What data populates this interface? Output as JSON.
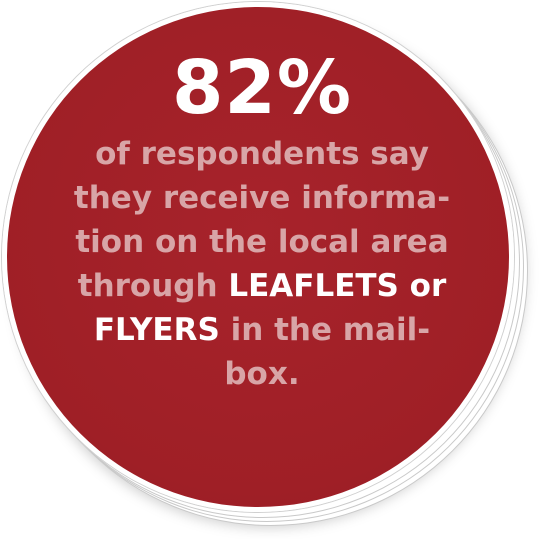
{
  "stat": {
    "value": "82%"
  },
  "description": {
    "line1": "of respondents say",
    "line2": "they receive informa-",
    "line3": "tion on the local area",
    "line4_a": "through ",
    "line4_b": "LEAFLETS or",
    "line5_a": "FLYERS",
    "line5_b": " in the mail-",
    "line6": "box."
  },
  "colors": {
    "badge": "#a2222a",
    "muted_text": "#d8a5a7",
    "highlight_text": "#ffffff",
    "ring": "#ffffff"
  }
}
